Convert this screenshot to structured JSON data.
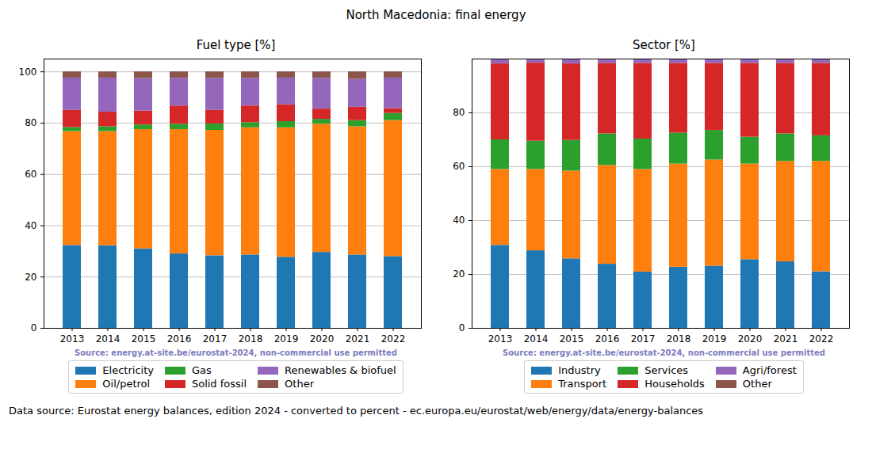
{
  "title": "North Macedonia: final energy",
  "caption": "Data source: Eurostat energy balances, edition 2024 - converted to percent - ec.europa.eu/eurostat/web/energy/data/energy-balances",
  "chart_data": [
    {
      "type": "bar",
      "title": "Fuel type [%]",
      "stacked": true,
      "grid": true,
      "legend": "bottom",
      "annotation": "Source: energy.at-site.be/eurostat-2024, non-commercial use permitted",
      "categories": [
        "2013",
        "2014",
        "2015",
        "2016",
        "2017",
        "2018",
        "2019",
        "2020",
        "2021",
        "2022"
      ],
      "ylim": [
        0,
        105
      ],
      "yticks": [
        0,
        20,
        40,
        60,
        80,
        100
      ],
      "series": [
        {
          "name": "Electricity",
          "color": "#1f77b4",
          "values": [
            32.3,
            32.2,
            31.0,
            29.0,
            28.3,
            28.6,
            27.7,
            29.6,
            28.6,
            28.0
          ]
        },
        {
          "name": "Oil/petrol",
          "color": "#ff7f0e",
          "values": [
            44.4,
            44.5,
            46.5,
            48.5,
            48.9,
            49.6,
            50.5,
            50.0,
            50.0,
            53.0
          ]
        },
        {
          "name": "Gas",
          "color": "#2ca02c",
          "values": [
            1.6,
            1.9,
            1.8,
            2.1,
            2.5,
            2.0,
            2.4,
            1.9,
            2.4,
            2.8
          ]
        },
        {
          "name": "Solid fossil",
          "color": "#d62728",
          "values": [
            6.7,
            5.7,
            5.4,
            7.1,
            5.3,
            6.5,
            6.6,
            4.0,
            5.2,
            1.9
          ]
        },
        {
          "name": "Renewables & biofuel",
          "color": "#9467bd",
          "values": [
            12.6,
            13.3,
            12.7,
            10.8,
            12.5,
            10.8,
            10.4,
            12.0,
            10.9,
            11.9
          ]
        },
        {
          "name": "Other",
          "color": "#8c564b",
          "values": [
            2.4,
            2.4,
            2.6,
            2.5,
            2.5,
            2.5,
            2.4,
            2.5,
            2.9,
            2.4
          ]
        }
      ]
    },
    {
      "type": "bar",
      "title": "Sector [%]",
      "stacked": true,
      "grid": true,
      "legend": "bottom",
      "annotation": "Source: energy.at-site.be/eurostat-2024, non-commercial use permitted",
      "categories": [
        "2013",
        "2014",
        "2015",
        "2016",
        "2017",
        "2018",
        "2019",
        "2020",
        "2021",
        "2022"
      ],
      "ylim": [
        0,
        100
      ],
      "yticks": [
        0,
        20,
        40,
        60,
        80
      ],
      "series": [
        {
          "name": "Industry",
          "color": "#1f77b4",
          "values": [
            30.8,
            28.8,
            25.8,
            23.8,
            20.9,
            22.7,
            23.1,
            25.5,
            24.7,
            21.0
          ]
        },
        {
          "name": "Transport",
          "color": "#ff7f0e",
          "values": [
            28.2,
            30.2,
            32.6,
            36.7,
            38.1,
            38.3,
            39.4,
            35.5,
            37.3,
            41.0
          ]
        },
        {
          "name": "Services",
          "color": "#2ca02c",
          "values": [
            11.0,
            10.5,
            11.4,
            11.7,
            11.3,
            11.5,
            11.0,
            10.0,
            10.2,
            9.5
          ]
        },
        {
          "name": "Households",
          "color": "#d62728",
          "values": [
            28.2,
            29.0,
            28.4,
            26.2,
            28.1,
            25.9,
            24.9,
            27.4,
            26.2,
            26.9
          ]
        },
        {
          "name": "Agri/forest",
          "color": "#9467bd",
          "values": [
            1.8,
            1.5,
            1.8,
            1.6,
            1.6,
            1.6,
            1.6,
            1.6,
            1.6,
            1.6
          ]
        },
        {
          "name": "Other",
          "color": "#8c564b",
          "values": [
            0,
            0,
            0,
            0,
            0,
            0,
            0,
            0,
            0,
            0
          ]
        }
      ]
    }
  ]
}
